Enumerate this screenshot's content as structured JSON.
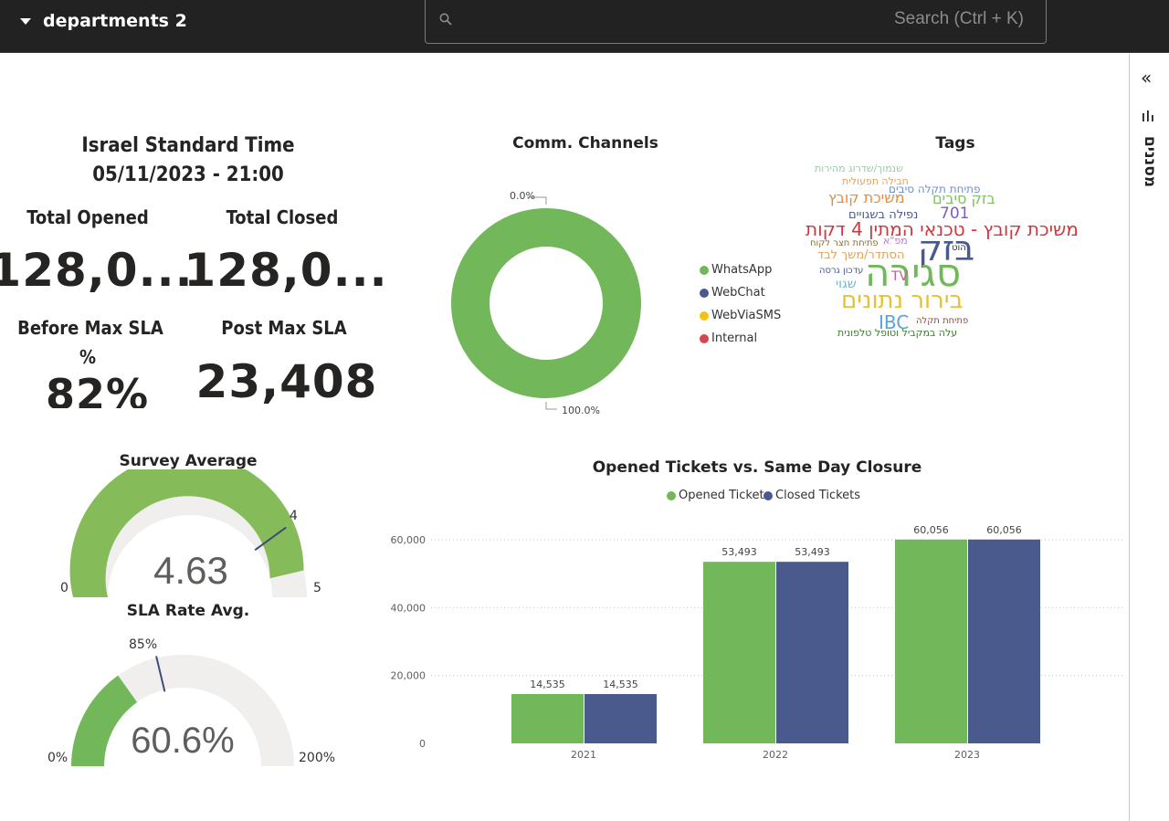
{
  "topbar": {
    "report_name": "departments 2",
    "search_placeholder": "Search (Ctrl + K)"
  },
  "right_pane": {
    "collapse_glyph": "«",
    "filters_label": "מסננים"
  },
  "clock": {
    "title": "Israel Standard Time",
    "datetime": "05/11/2023 - 21:00"
  },
  "cards": {
    "total_opened_label": "Total Opened",
    "total_opened_value": "128,0...",
    "total_closed_label": "Total Closed",
    "total_closed_value": "128,0...",
    "before_sla_label_1": "Before Max SLA",
    "before_sla_label_2": "%",
    "before_sla_value": "82%",
    "post_sla_label": "Post Max SLA",
    "post_sla_value": "23,408"
  },
  "channels": {
    "title": "Comm. Channels",
    "label_top": "0.0%",
    "label_bottom": "100.0%",
    "legend": [
      {
        "name": "WhatsApp",
        "color": "#72b85b"
      },
      {
        "name": "WebChat",
        "color": "#4a5a8d"
      },
      {
        "name": "WebViaSMS",
        "color": "#f2c314"
      },
      {
        "name": "Internal",
        "color": "#d64550"
      }
    ]
  },
  "tags": {
    "title": "Tags",
    "words": [
      {
        "text": "שנמוך/שדרוג מהירות",
        "color": "#9cc9a9"
      },
      {
        "text": "חבילה תפעולית",
        "color": "#e0a35b"
      },
      {
        "text": "פתיחת תקלה סיבים",
        "color": "#6b8fd4"
      },
      {
        "text": "בזק סיבים",
        "color": "#7dc25e"
      },
      {
        "text": "משיכת קובץ",
        "color": "#e88a3a"
      },
      {
        "text": "701",
        "color": "#7b5ec2"
      },
      {
        "text": "נפילה בשגויים",
        "color": "#4a5a8d"
      },
      {
        "text": "משיכת קובץ - טכנאי המתין 4 דקות",
        "color": "#d2363c"
      },
      {
        "text": "מפ\"א",
        "color": "#b47ad4"
      },
      {
        "text": "פתיחת חצר לקוח",
        "color": "#8a6d3b"
      },
      {
        "text": "בזק",
        "color": "#4a5a8d"
      },
      {
        "text": "הוט",
        "color": "#333333"
      },
      {
        "text": "הסתדר/משך לבד",
        "color": "#e0a35b"
      },
      {
        "text": "סגירה",
        "color": "#72b85b"
      },
      {
        "text": "עדכון גרסה",
        "color": "#4a5a8d"
      },
      {
        "text": "שגוי",
        "color": "#6bb5d8"
      },
      {
        "text": "TV",
        "color": "#c75d9b"
      },
      {
        "text": "בירור נתונים",
        "color": "#e5c233"
      },
      {
        "text": "IBC",
        "color": "#5aa3e0"
      },
      {
        "text": "פתיחת תקלה",
        "color": "#8a4d3b"
      },
      {
        "text": "עלה במקביל וטופל טלפונית",
        "color": "#3a7d2b"
      }
    ]
  },
  "survey": {
    "title": "Survey Average",
    "value": 4.63,
    "value_label": "4.63",
    "min": 0,
    "max": 5,
    "target": 4,
    "min_label": "0",
    "max_label": "5",
    "target_label": "4",
    "fill_color": "#86bb59"
  },
  "sla_rate": {
    "title": "SLA Rate Avg.",
    "value": 0.606,
    "value_label": "60.6%",
    "min": 0,
    "max": 2,
    "target": 0.85,
    "min_label": "0%",
    "max_label": "200%",
    "target_label": "85%",
    "fill_color": "#72b85b"
  },
  "chart_data": {
    "type": "bar",
    "title": "Opened Tickets vs. Same Day Closure",
    "categories": [
      "2021",
      "2022",
      "2023"
    ],
    "series": [
      {
        "name": "Opened Tickets",
        "color": "#72b85b",
        "values": [
          14535,
          53493,
          60056
        ],
        "labels": [
          "14,535",
          "53,493",
          "60,056"
        ]
      },
      {
        "name": "Closed Tickets",
        "color": "#4a5a8d",
        "values": [
          14535,
          53493,
          60056
        ],
        "labels": [
          "14,535",
          "53,493",
          "60,056"
        ]
      }
    ],
    "ylim": [
      0,
      60000
    ],
    "yticks": [
      0,
      20000,
      40000,
      60000
    ],
    "ytick_labels": [
      "0",
      "20,000",
      "40,000",
      "60,000"
    ],
    "grid": true,
    "legend_position": "top"
  }
}
